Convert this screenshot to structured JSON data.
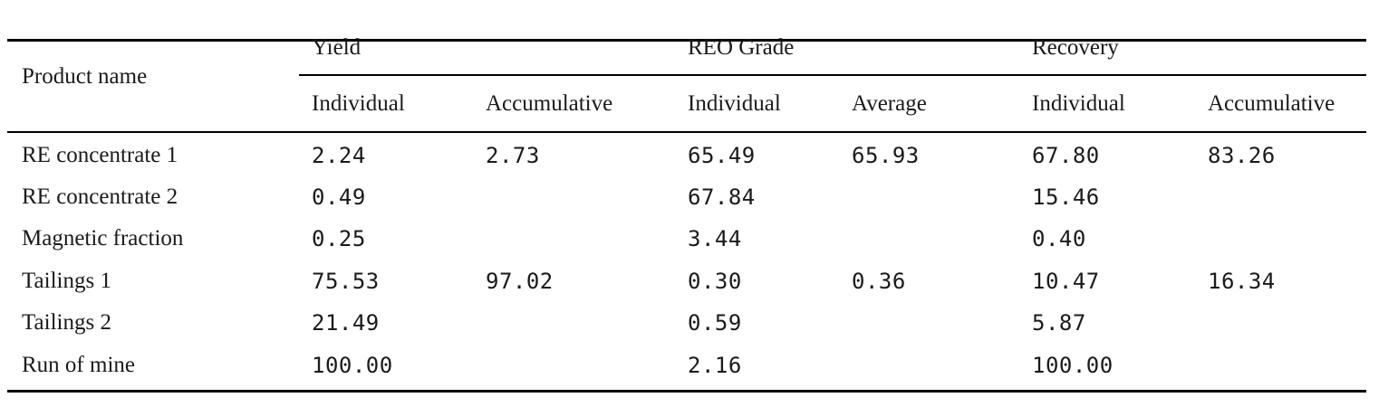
{
  "table": {
    "header": {
      "product_name": "Product name",
      "groups": [
        "Yield",
        "REO Grade",
        "Recovery"
      ],
      "subheaders": [
        "Individual",
        "Accumulative",
        "Individual",
        "Average",
        "Individual",
        "Accumulative"
      ]
    },
    "rows": [
      {
        "name": "RE concentrate 1",
        "values": [
          "2.24",
          "2.73",
          "65.49",
          "65.93",
          "67.80",
          "83.26"
        ]
      },
      {
        "name": "RE concentrate 2",
        "values": [
          "0.49",
          "",
          "67.84",
          "",
          "15.46",
          ""
        ]
      },
      {
        "name": "Magnetic fraction",
        "values": [
          "0.25",
          "",
          "3.44",
          "",
          "0.40",
          ""
        ]
      },
      {
        "name": "Tailings 1",
        "values": [
          "75.53",
          "97.02",
          "0.30",
          "0.36",
          "10.47",
          "16.34"
        ]
      },
      {
        "name": "Tailings 2",
        "values": [
          "21.49",
          "",
          "0.59",
          "",
          "5.87",
          ""
        ]
      },
      {
        "name": "Run of mine",
        "values": [
          "100.00",
          "",
          "2.16",
          "",
          "100.00",
          ""
        ]
      }
    ]
  }
}
